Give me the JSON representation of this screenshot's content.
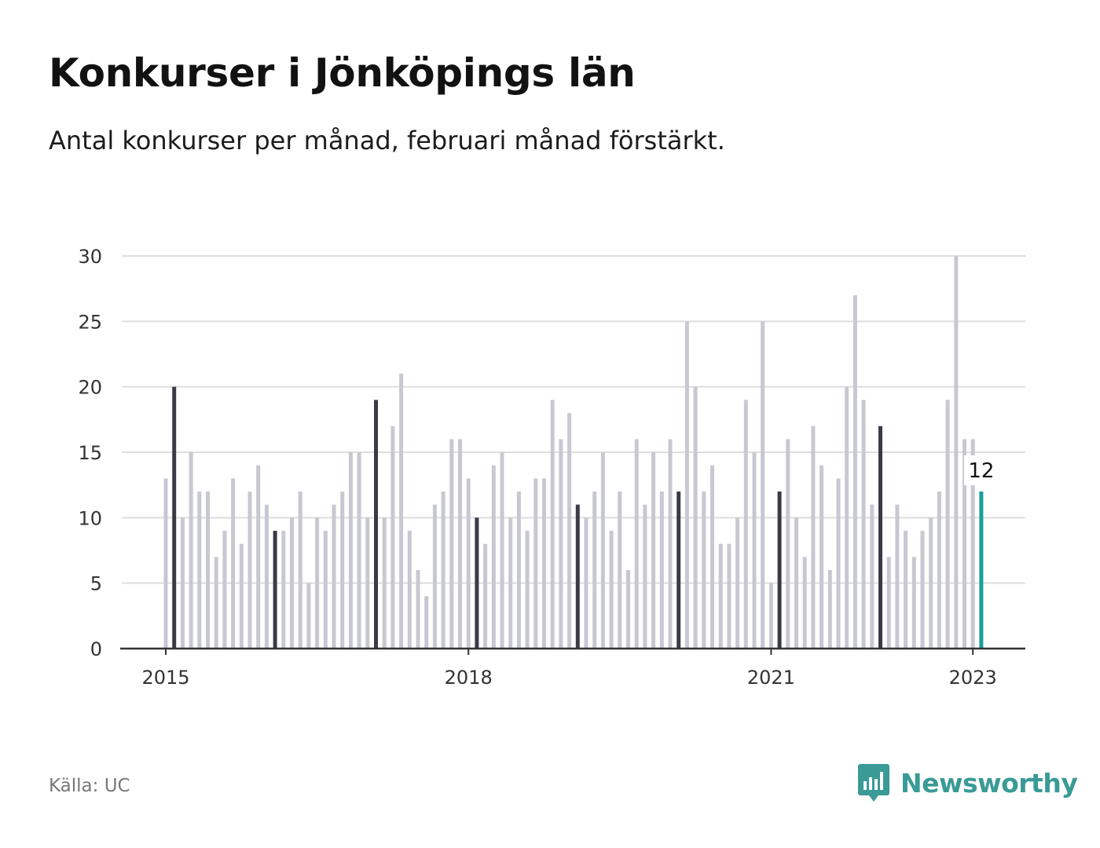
{
  "header": {
    "title": "Konkurser i Jönköpings län",
    "subtitle": "Antal konkurser per månad, februari månad förstärkt."
  },
  "footer": {
    "source": "Källa: UC",
    "brand": "Newsworthy"
  },
  "colors": {
    "bar_default": "#c8c8d2",
    "bar_february": "#3a3a48",
    "bar_latest": "#1a9e9a",
    "grid": "#dedede",
    "axis": "#333333",
    "brand": "#3a9a96"
  },
  "icons": {
    "brand_logo": "bar-chart-speech-bubble-icon"
  },
  "chart_data": {
    "type": "bar",
    "title": "Konkurser i Jönköpings län",
    "subtitle": "Antal konkurser per månad, februari månad förstärkt.",
    "xlabel": "",
    "ylabel": "",
    "ylim": [
      0,
      30
    ],
    "yticks": [
      0,
      5,
      10,
      15,
      20,
      25,
      30
    ],
    "xtick_labels": [
      {
        "label": "2015",
        "period": "2015-01"
      },
      {
        "label": "2018",
        "period": "2018-01"
      },
      {
        "label": "2021",
        "period": "2021-01"
      },
      {
        "label": "2023",
        "period": "2023-01"
      }
    ],
    "grid": true,
    "highlight": "February bars emphasized (dark); latest month in teal",
    "series": [
      {
        "periods": [
          "2015-01",
          "2015-02",
          "2015-03",
          "2015-04",
          "2015-05",
          "2015-06",
          "2015-07",
          "2015-08",
          "2015-09",
          "2015-10",
          "2015-11",
          "2015-12",
          "2016-01",
          "2016-02",
          "2016-03",
          "2016-04",
          "2016-05",
          "2016-06",
          "2016-07",
          "2016-08",
          "2016-09",
          "2016-10",
          "2016-11",
          "2016-12",
          "2017-01",
          "2017-02",
          "2017-03",
          "2017-04",
          "2017-05",
          "2017-06",
          "2017-07",
          "2017-08",
          "2017-09",
          "2017-10",
          "2017-11",
          "2017-12",
          "2018-01",
          "2018-02",
          "2018-03",
          "2018-04",
          "2018-05",
          "2018-06",
          "2018-07",
          "2018-08",
          "2018-09",
          "2018-10",
          "2018-11",
          "2018-12",
          "2019-01",
          "2019-02",
          "2019-03",
          "2019-04",
          "2019-05",
          "2019-06",
          "2019-07",
          "2019-08",
          "2019-09",
          "2019-10",
          "2019-11",
          "2019-12",
          "2020-01",
          "2020-02",
          "2020-03",
          "2020-04",
          "2020-05",
          "2020-06",
          "2020-07",
          "2020-08",
          "2020-09",
          "2020-10",
          "2020-11",
          "2020-12",
          "2021-01",
          "2021-02",
          "2021-03",
          "2021-04",
          "2021-05",
          "2021-06",
          "2021-07",
          "2021-08",
          "2021-09",
          "2021-10",
          "2021-11",
          "2021-12",
          "2022-01",
          "2022-02",
          "2022-03",
          "2022-04",
          "2022-05",
          "2022-06",
          "2022-07",
          "2022-08",
          "2022-09",
          "2022-10",
          "2022-11",
          "2022-12",
          "2023-01",
          "2023-02"
        ],
        "values": [
          13,
          20,
          10,
          15,
          12,
          12,
          7,
          9,
          13,
          8,
          12,
          14,
          11,
          9,
          9,
          10,
          12,
          5,
          10,
          9,
          11,
          12,
          15,
          15,
          10,
          19,
          10,
          17,
          21,
          9,
          6,
          4,
          11,
          12,
          16,
          16,
          13,
          10,
          8,
          14,
          15,
          10,
          12,
          9,
          13,
          13,
          19,
          16,
          18,
          11,
          10,
          12,
          15,
          9,
          12,
          6,
          16,
          11,
          15,
          12,
          16,
          12,
          25,
          20,
          12,
          14,
          8,
          8,
          10,
          19,
          15,
          25,
          5,
          12,
          16,
          10,
          7,
          17,
          14,
          6,
          13,
          20,
          27,
          19,
          11,
          17,
          7,
          11,
          9,
          7,
          9,
          10,
          12,
          19,
          30,
          16,
          16,
          12
        ]
      }
    ],
    "annotations": [
      {
        "period": "2023-02",
        "text": "12"
      }
    ]
  }
}
